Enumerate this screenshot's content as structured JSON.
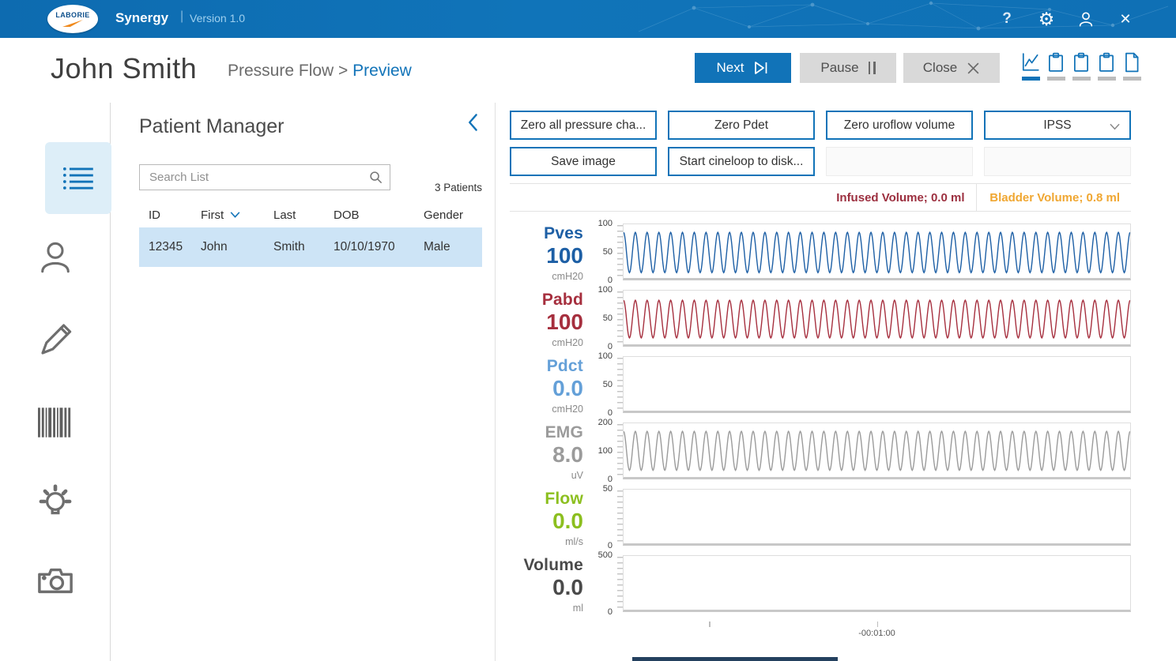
{
  "titlebar": {
    "brand": "LABORIE",
    "app_name": "Synergy",
    "version": "Version 1.0",
    "colors": {
      "bg": "#1074b9",
      "accent": "#1173b8"
    }
  },
  "header": {
    "patient_name": "John Smith",
    "breadcrumb": "Pressure Flow >",
    "breadcrumb_active": "Preview",
    "buttons": {
      "next": "Next",
      "pause": "Pause",
      "close": "Close"
    },
    "report_icons": [
      "trace-chart",
      "clipboard-report-1",
      "clipboard-report-2",
      "clipboard-report-3",
      "document-report"
    ]
  },
  "sidebar": {
    "items": [
      {
        "icon": "patient-list-icon",
        "active": true
      },
      {
        "icon": "patient-person-icon",
        "active": false
      },
      {
        "icon": "edit-pencil-icon",
        "active": false
      },
      {
        "icon": "barcode-icon",
        "active": false
      },
      {
        "icon": "lightbulb-icon",
        "active": false
      },
      {
        "icon": "camera-icon",
        "active": false
      }
    ]
  },
  "patient_manager": {
    "title": "Patient Manager",
    "search_placeholder": "Search List",
    "patient_count": "3 Patients",
    "table": {
      "headers": [
        "ID",
        "First",
        "Last",
        "DOB",
        "Gender"
      ],
      "sorted_column": "First",
      "rows": [
        [
          "12345",
          "John",
          "Smith",
          "10/10/1970",
          "Male"
        ]
      ]
    }
  },
  "controls": {
    "zero_all": "Zero all pressure cha...",
    "zero_pdet": "Zero Pdet",
    "zero_uroflow": "Zero uroflow volume",
    "dropdown_label": "IPSS",
    "save_image": "Save image",
    "start_cineloop": "Start cineloop to disk..."
  },
  "status": {
    "infused": "Infused Volume; 0.0 ml",
    "bladder": "Bladder Volume; 0.8 ml",
    "infused_color": "#9c2f3f",
    "bladder_color": "#f0a732"
  },
  "chart_data": {
    "type": "line",
    "time_axis_label": "-00:01:00",
    "grid": false,
    "channels": [
      {
        "name": "Pves",
        "value": "100",
        "unit": "cmH20",
        "color": "#1d5fa5",
        "ymin": 0,
        "ymax": 100,
        "ticks": [
          100,
          50,
          0
        ],
        "wave": {
          "min": 10,
          "max": 85,
          "cycles": 43
        }
      },
      {
        "name": "Pabd",
        "value": "100",
        "unit": "cmH20",
        "color": "#a62f3e",
        "ymin": 0,
        "ymax": 100,
        "ticks": [
          100,
          50,
          0
        ],
        "wave": {
          "min": 12,
          "max": 82,
          "cycles": 43
        }
      },
      {
        "name": "Pdct",
        "value": "0.0",
        "unit": "cmH20",
        "color": "#64a0d8",
        "ymin": 0,
        "ymax": 100,
        "ticks": [
          100,
          50,
          0
        ],
        "wave": null
      },
      {
        "name": "EMG",
        "value": "8.0",
        "unit": "uV",
        "color": "#9b9b9b",
        "ymin": 0,
        "ymax": 200,
        "ticks": [
          200,
          100,
          0
        ],
        "wave": {
          "min": 25,
          "max": 170,
          "cycles": 43
        }
      },
      {
        "name": "Flow",
        "value": "0.0",
        "unit": "ml/s",
        "color": "#8cbf1f",
        "ymin": 0,
        "ymax": 50,
        "ticks": [
          50,
          0
        ],
        "wave": null
      },
      {
        "name": "Volume",
        "value": "0.0",
        "unit": "ml",
        "color": "#4a4a4a",
        "ymin": 0,
        "ymax": 500,
        "ticks": [
          500,
          0
        ],
        "wave": null
      }
    ]
  }
}
